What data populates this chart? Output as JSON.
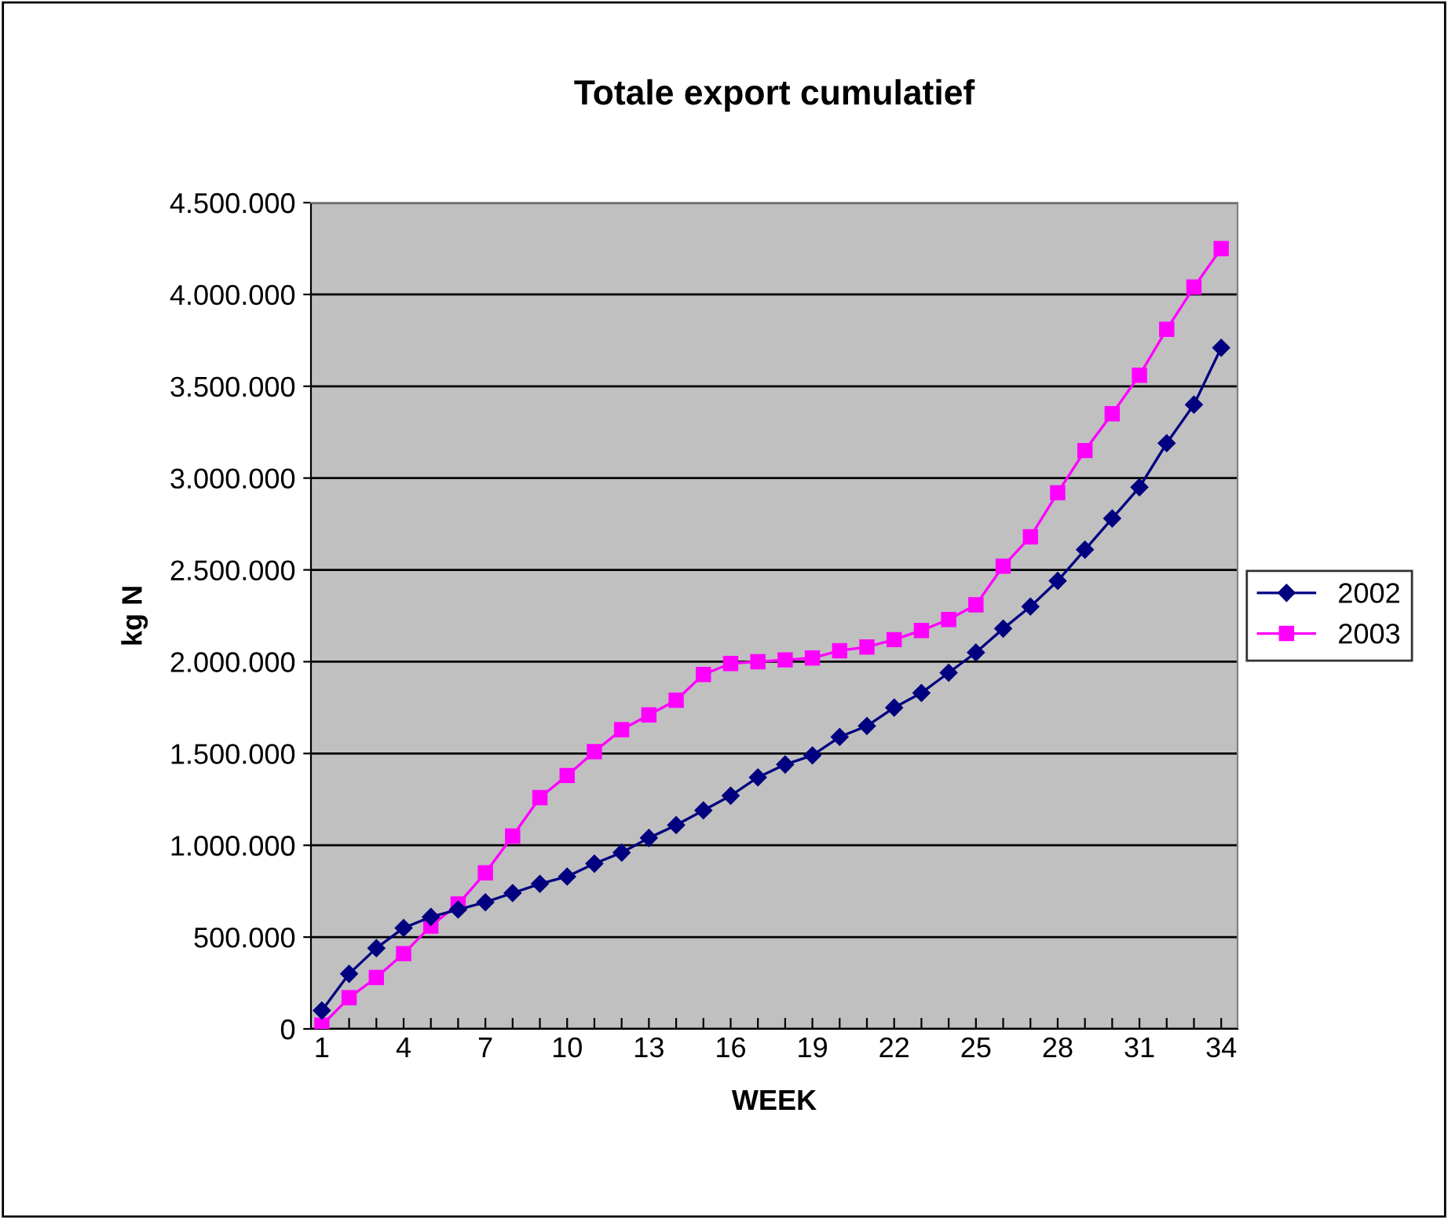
{
  "chart_data": {
    "type": "line",
    "title": "Totale export cumulatief",
    "xlabel": "WEEK",
    "ylabel": "kg N",
    "categories": [
      "1",
      null,
      null,
      "4",
      null,
      null,
      "7",
      null,
      null,
      "10",
      null,
      null,
      "13",
      null,
      null,
      "16",
      null,
      null,
      "19",
      null,
      null,
      "22",
      null,
      null,
      "25",
      null,
      null,
      "28",
      null,
      null,
      "31",
      null,
      null,
      "34"
    ],
    "series": [
      {
        "name": "2002",
        "color": "#000080",
        "marker": "diamond",
        "values": [
          100000,
          300000,
          440000,
          550000,
          610000,
          650000,
          690000,
          740000,
          790000,
          830000,
          900000,
          960000,
          1040000,
          1110000,
          1190000,
          1270000,
          1370000,
          1440000,
          1490000,
          1590000,
          1650000,
          1750000,
          1830000,
          1940000,
          2050000,
          2180000,
          2300000,
          2440000,
          2610000,
          2780000,
          2950000,
          3190000,
          3400000,
          3710000
        ]
      },
      {
        "name": "2003",
        "color": "#ff00ff",
        "marker": "square",
        "values": [
          20000,
          170000,
          280000,
          410000,
          560000,
          680000,
          850000,
          1050000,
          1260000,
          1380000,
          1510000,
          1630000,
          1710000,
          1790000,
          1930000,
          1990000,
          2000000,
          2010000,
          2020000,
          2060000,
          2080000,
          2120000,
          2170000,
          2230000,
          2310000,
          2520000,
          2680000,
          2920000,
          3150000,
          3350000,
          3560000,
          3810000,
          4040000,
          4250000
        ]
      }
    ],
    "ylim": [
      0,
      4500000
    ],
    "yticks": [
      0,
      {
        "value": 500000,
        "label": "500.000"
      },
      {
        "value": 1000000,
        "label": "1.000.000"
      },
      {
        "value": 1500000,
        "label": "1.500.000"
      },
      {
        "value": 2000000,
        "label": "2.000.000"
      },
      {
        "value": 2500000,
        "label": "2.500.000"
      },
      {
        "value": 3000000,
        "label": "3.000.000"
      },
      {
        "value": 3500000,
        "label": "3.500.000"
      },
      {
        "value": 4000000,
        "label": "4.000.000"
      },
      {
        "value": 4500000,
        "label": "4.500.000"
      }
    ],
    "grid": "y",
    "legend": "right"
  }
}
